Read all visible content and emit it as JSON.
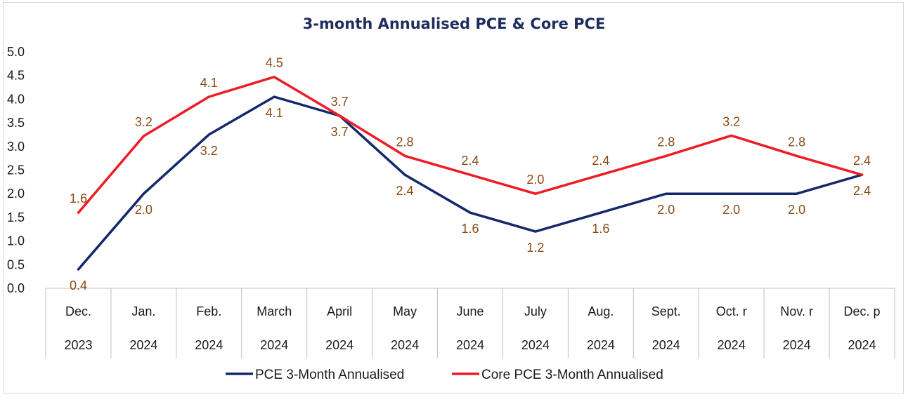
{
  "chart_data": {
    "type": "line",
    "title": "3-month Annualised PCE & Core PCE",
    "xlabel": "",
    "ylabel": "",
    "ylim": [
      0.0,
      5.0
    ],
    "yticks": [
      "0.0",
      "0.5",
      "1.0",
      "1.5",
      "2.0",
      "2.5",
      "3.0",
      "3.5",
      "4.0",
      "4.5",
      "5.0"
    ],
    "categories": [
      {
        "month": "Dec.",
        "year": "2023"
      },
      {
        "month": "Jan.",
        "year": "2024"
      },
      {
        "month": "Feb.",
        "year": "2024"
      },
      {
        "month": "March",
        "year": "2024"
      },
      {
        "month": "April",
        "year": "2024"
      },
      {
        "month": "May",
        "year": "2024"
      },
      {
        "month": "June",
        "year": "2024"
      },
      {
        "month": "July",
        "year": "2024"
      },
      {
        "month": "Aug.",
        "year": "2024"
      },
      {
        "month": "Sept.",
        "year": "2024"
      },
      {
        "month": "Oct. r",
        "year": "2024"
      },
      {
        "month": "Nov. r",
        "year": "2024"
      },
      {
        "month": "Dec. p",
        "year": "2024"
      }
    ],
    "series": [
      {
        "name": "PCE 3-Month Annualised",
        "color": "#14286b",
        "values": [
          0.4,
          2.0,
          3.25,
          4.05,
          3.65,
          2.4,
          1.6,
          1.2,
          1.6,
          2.0,
          2.0,
          2.0,
          2.4
        ],
        "labels": [
          "0.4",
          "2.0",
          "3.2",
          "4.1",
          "3.7",
          "2.4",
          "1.6",
          "1.2",
          "1.6",
          "2.0",
          "2.0",
          "2.0",
          "2.4"
        ],
        "label_position": "below"
      },
      {
        "name": "Core PCE 3-Month Annualised",
        "color": "#ee1c25",
        "values": [
          1.6,
          3.22,
          4.05,
          4.47,
          3.65,
          2.8,
          2.4,
          2.0,
          2.4,
          2.8,
          3.23,
          2.8,
          2.4
        ],
        "labels": [
          "1.6",
          "3.2",
          "4.1",
          "4.5",
          "3.7",
          "2.8",
          "2.4",
          "2.0",
          "2.4",
          "2.8",
          "3.2",
          "2.8",
          "2.4"
        ],
        "label_position": "above"
      }
    ],
    "label_color": "#8b4a14",
    "legend_position": "bottom"
  }
}
